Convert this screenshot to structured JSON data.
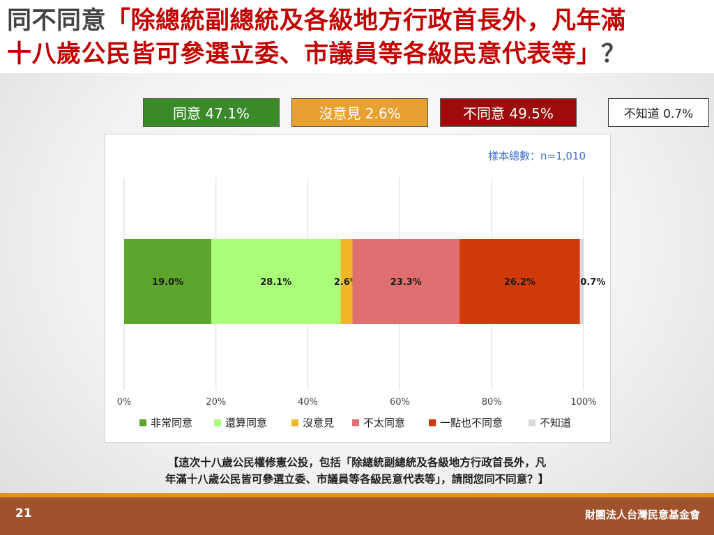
{
  "title": {
    "prefix": "同不同意",
    "line1_quote": "「除總統副總統及各級地方行政首長外，凡年滿",
    "line2_quote": "十八歲公民皆可參選立委、市議員等各級民意代表等」",
    "suffix": "？"
  },
  "summary": [
    {
      "label": "同意 47.1%",
      "bg": "#3a8a2a"
    },
    {
      "label": "沒意見 2.6%",
      "bg": "#e8a030"
    },
    {
      "label": "不同意 49.5%",
      "bg": "#9e0b0b"
    },
    {
      "label": "不知道 0.7%",
      "bg": "#ffffff"
    }
  ],
  "sample_label": "樣本總數：n=1,010",
  "chart_data": {
    "type": "bar",
    "orientation": "horizontal-stacked",
    "categories": [
      ""
    ],
    "series": [
      {
        "name": "非常同意",
        "values": [
          19.0
        ],
        "label": "19.0%",
        "color": "#5ea52d"
      },
      {
        "name": "還算同意",
        "values": [
          28.1
        ],
        "label": "28.1%",
        "color": "#aaff7a"
      },
      {
        "name": "沒意見",
        "values": [
          2.6
        ],
        "label": "2.6%",
        "color": "#f0b828"
      },
      {
        "name": "不太同意",
        "values": [
          23.3
        ],
        "label": "23.3%",
        "color": "#e07070"
      },
      {
        "name": "一點也不同意",
        "values": [
          26.2
        ],
        "label": "26.2%",
        "color": "#d03a0a"
      },
      {
        "name": "不知道",
        "values": [
          0.7
        ],
        "label": "0.7%",
        "color": "#d9d9d9"
      }
    ],
    "xlim": [
      0,
      100
    ],
    "xticks": [
      "0%",
      "20%",
      "40%",
      "60%",
      "80%",
      "100%"
    ],
    "grid": true,
    "legend_position": "bottom"
  },
  "question": {
    "line1": "【這次十八歲公民權修憲公投，包括「除總統副總統及各級地方行政首長外，凡",
    "line2": "年滿十八歲公民皆可參選立委、市議員等各級民意代表等」，請問您同不同意？】"
  },
  "page_number": "21",
  "organization": "財團法人台灣民意基金會"
}
